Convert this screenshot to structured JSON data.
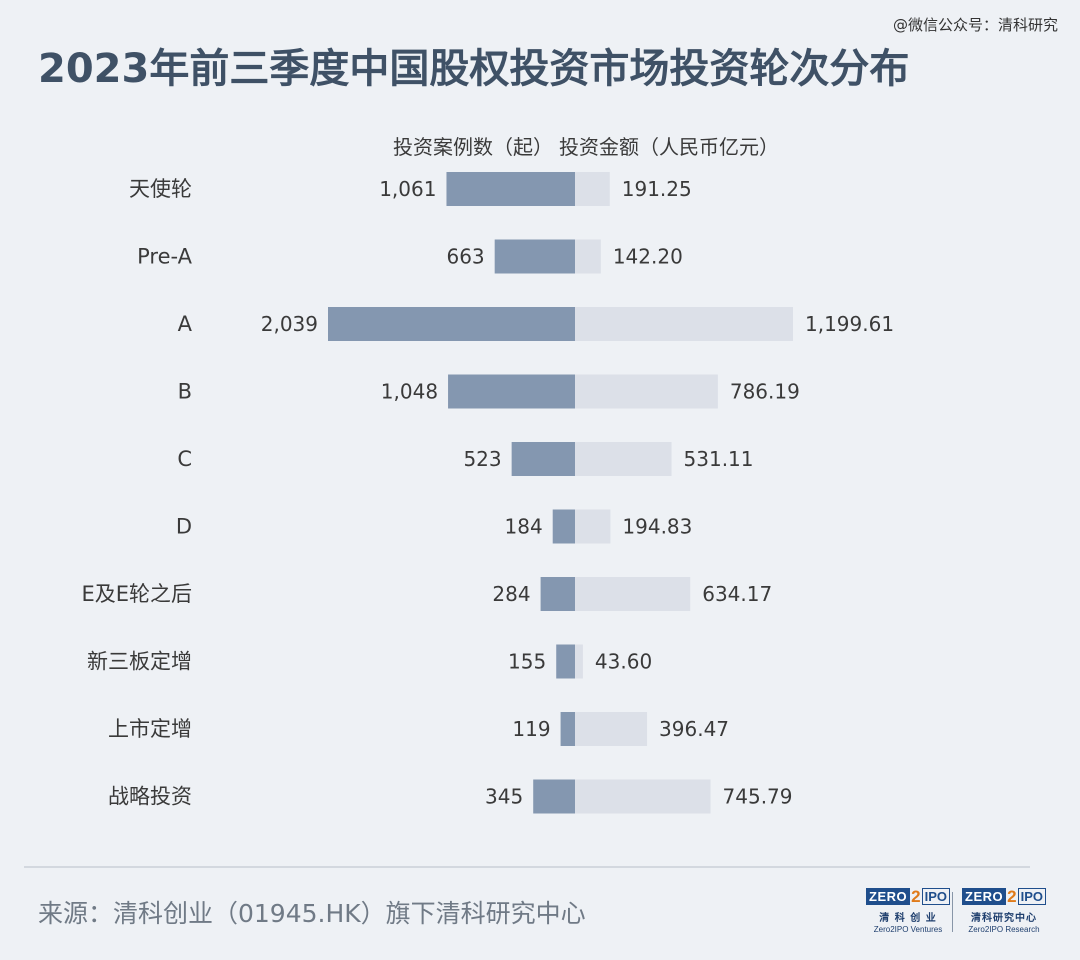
{
  "watermark": "@微信公众号：清科研究",
  "title": "2023年前三季度中国股权投资市场投资轮次分布",
  "source": "来源：清科创业（01945.HK）旗下清科研究中心",
  "logos": [
    {
      "zero": "ZERO",
      "two": "2",
      "ipo": "IPO",
      "cn": "清 科 创 业",
      "en": "Zero2IPO Ventures"
    },
    {
      "zero": "ZERO",
      "two": "2",
      "ipo": "IPO",
      "cn": "清科研究中心",
      "en": "Zero2IPO Research"
    }
  ],
  "chart_data": {
    "type": "bar",
    "orientation": "horizontal-butterfly",
    "categories": [
      "天使轮",
      "Pre-A",
      "A",
      "B",
      "C",
      "D",
      "E及E轮之后",
      "新三板定增",
      "上市定增",
      "战略投资"
    ],
    "series": [
      {
        "name": "投资案例数（起）",
        "values": [
          1061,
          663,
          2039,
          1048,
          523,
          184,
          284,
          155,
          119,
          345
        ],
        "labels": [
          "1,061",
          "663",
          "2,039",
          "1,048",
          "523",
          "184",
          "284",
          "155",
          "119",
          "345"
        ],
        "color": "#8497b0"
      },
      {
        "name": "投资金额（人民币亿元）",
        "values": [
          191.25,
          142.2,
          1199.61,
          786.19,
          531.11,
          194.83,
          634.17,
          43.6,
          396.47,
          745.79
        ],
        "labels": [
          "191.25",
          "142.20",
          "1,199.61",
          "786.19",
          "531.11",
          "194.83",
          "634.17",
          "43.60",
          "396.47",
          "745.79"
        ],
        "color": "#dce0e8"
      }
    ],
    "colors": {
      "label": "#3a3a3a",
      "category": "#3a3a3a"
    }
  }
}
